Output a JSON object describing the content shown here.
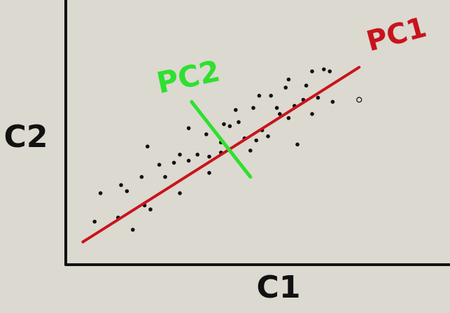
{
  "labels": {
    "x_axis": "C1",
    "y_axis": "C2",
    "pc1": "PC1",
    "pc2": "PC2"
  },
  "colors": {
    "background": "#dcd9d0",
    "axes": "#111111",
    "points": "#111111",
    "pc1": "#c8141c",
    "pc2": "#2fe02f"
  },
  "chart_data": {
    "type": "scatter",
    "xlabel": "C1",
    "ylabel": "C2",
    "xlim": [
      0,
      100
    ],
    "ylim": [
      0,
      100
    ],
    "points": [
      [
        6,
        15
      ],
      [
        8,
        29
      ],
      [
        14,
        17
      ],
      [
        17,
        30
      ],
      [
        15,
        33
      ],
      [
        19,
        11
      ],
      [
        22,
        37
      ],
      [
        23,
        23
      ],
      [
        25,
        21
      ],
      [
        24,
        52
      ],
      [
        28,
        43
      ],
      [
        30,
        37
      ],
      [
        33,
        44
      ],
      [
        35,
        29
      ],
      [
        35,
        48
      ],
      [
        38,
        61
      ],
      [
        38,
        45
      ],
      [
        41,
        48
      ],
      [
        44,
        58
      ],
      [
        45,
        39
      ],
      [
        45,
        47
      ],
      [
        49,
        49
      ],
      [
        49,
        54
      ],
      [
        50,
        63
      ],
      [
        52,
        62
      ],
      [
        54,
        70
      ],
      [
        55,
        64
      ],
      [
        57,
        56
      ],
      [
        59,
        50
      ],
      [
        60,
        71
      ],
      [
        61,
        55
      ],
      [
        62,
        77
      ],
      [
        63,
        60
      ],
      [
        65,
        57
      ],
      [
        66,
        77
      ],
      [
        68,
        71
      ],
      [
        69,
        68
      ],
      [
        71,
        81
      ],
      [
        72,
        66
      ],
      [
        72,
        85
      ],
      [
        74,
        72
      ],
      [
        75,
        53
      ],
      [
        77,
        75
      ],
      [
        78,
        82
      ],
      [
        80,
        68
      ],
      [
        80,
        89
      ],
      [
        82,
        76
      ],
      [
        84,
        90
      ],
      [
        86,
        89
      ],
      [
        87,
        74
      ]
    ],
    "outlier_point": [
      96,
      75
    ],
    "pc1_line": [
      [
        2,
        5
      ],
      [
        96,
        91
      ]
    ],
    "pc2_line": [
      [
        39,
        74
      ],
      [
        59,
        37
      ]
    ],
    "grid": false,
    "legend": "none"
  }
}
